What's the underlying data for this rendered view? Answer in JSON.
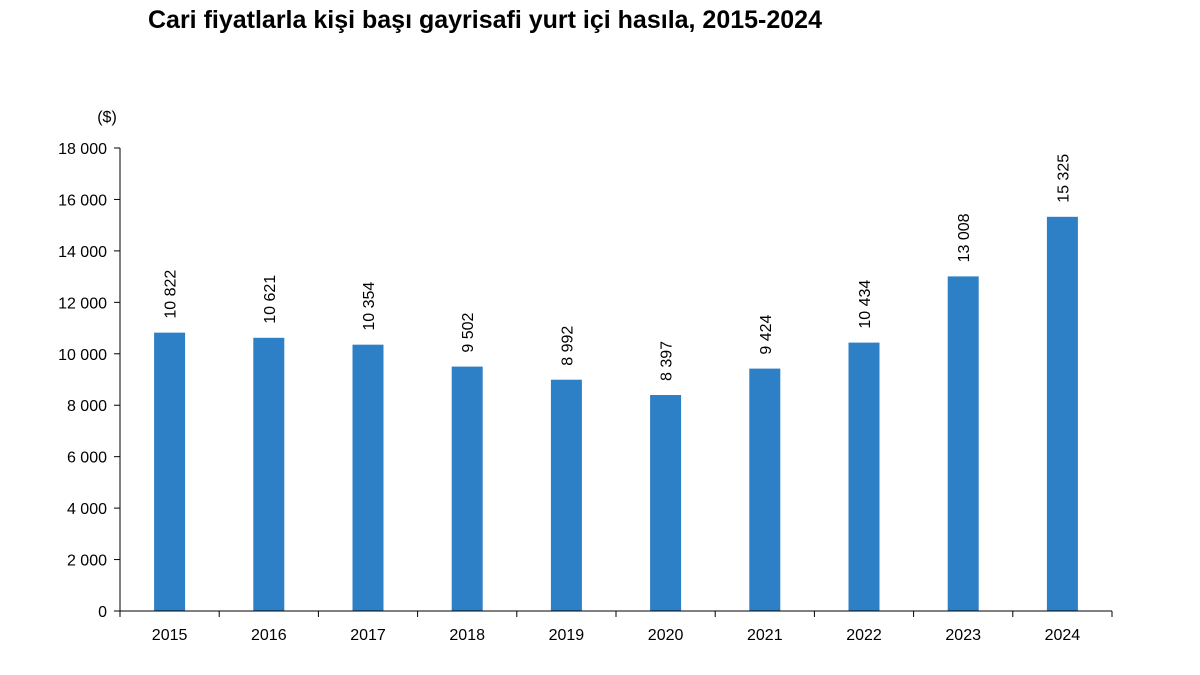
{
  "chart_data": {
    "type": "bar",
    "title": "Cari fiyatlarla kişi başı gayrisafi yurt içi hasıla, 2015-2024",
    "unit_label": "($)",
    "xlabel": "",
    "ylabel": "",
    "categories": [
      "2015",
      "2016",
      "2017",
      "2018",
      "2019",
      "2020",
      "2021",
      "2022",
      "2023",
      "2024"
    ],
    "values": [
      10822,
      10621,
      10354,
      9502,
      8992,
      8397,
      9424,
      10434,
      13008,
      15325
    ],
    "value_labels": [
      "10 822",
      "10 621",
      "10 354",
      "9 502",
      "8 992",
      "8 397",
      "9 424",
      "10 434",
      "13 008",
      "15 325"
    ],
    "ylim": [
      0,
      18000
    ],
    "yticks": [
      0,
      2000,
      4000,
      6000,
      8000,
      10000,
      12000,
      14000,
      16000,
      18000
    ],
    "ytick_labels": [
      "0",
      "2 000",
      "4 000",
      "6 000",
      "8 000",
      "10 000",
      "12 000",
      "14 000",
      "16 000",
      "18 000"
    ],
    "grid": false,
    "legend": "none",
    "bar_color": "#2E80C6",
    "axis_color": "#000000"
  }
}
